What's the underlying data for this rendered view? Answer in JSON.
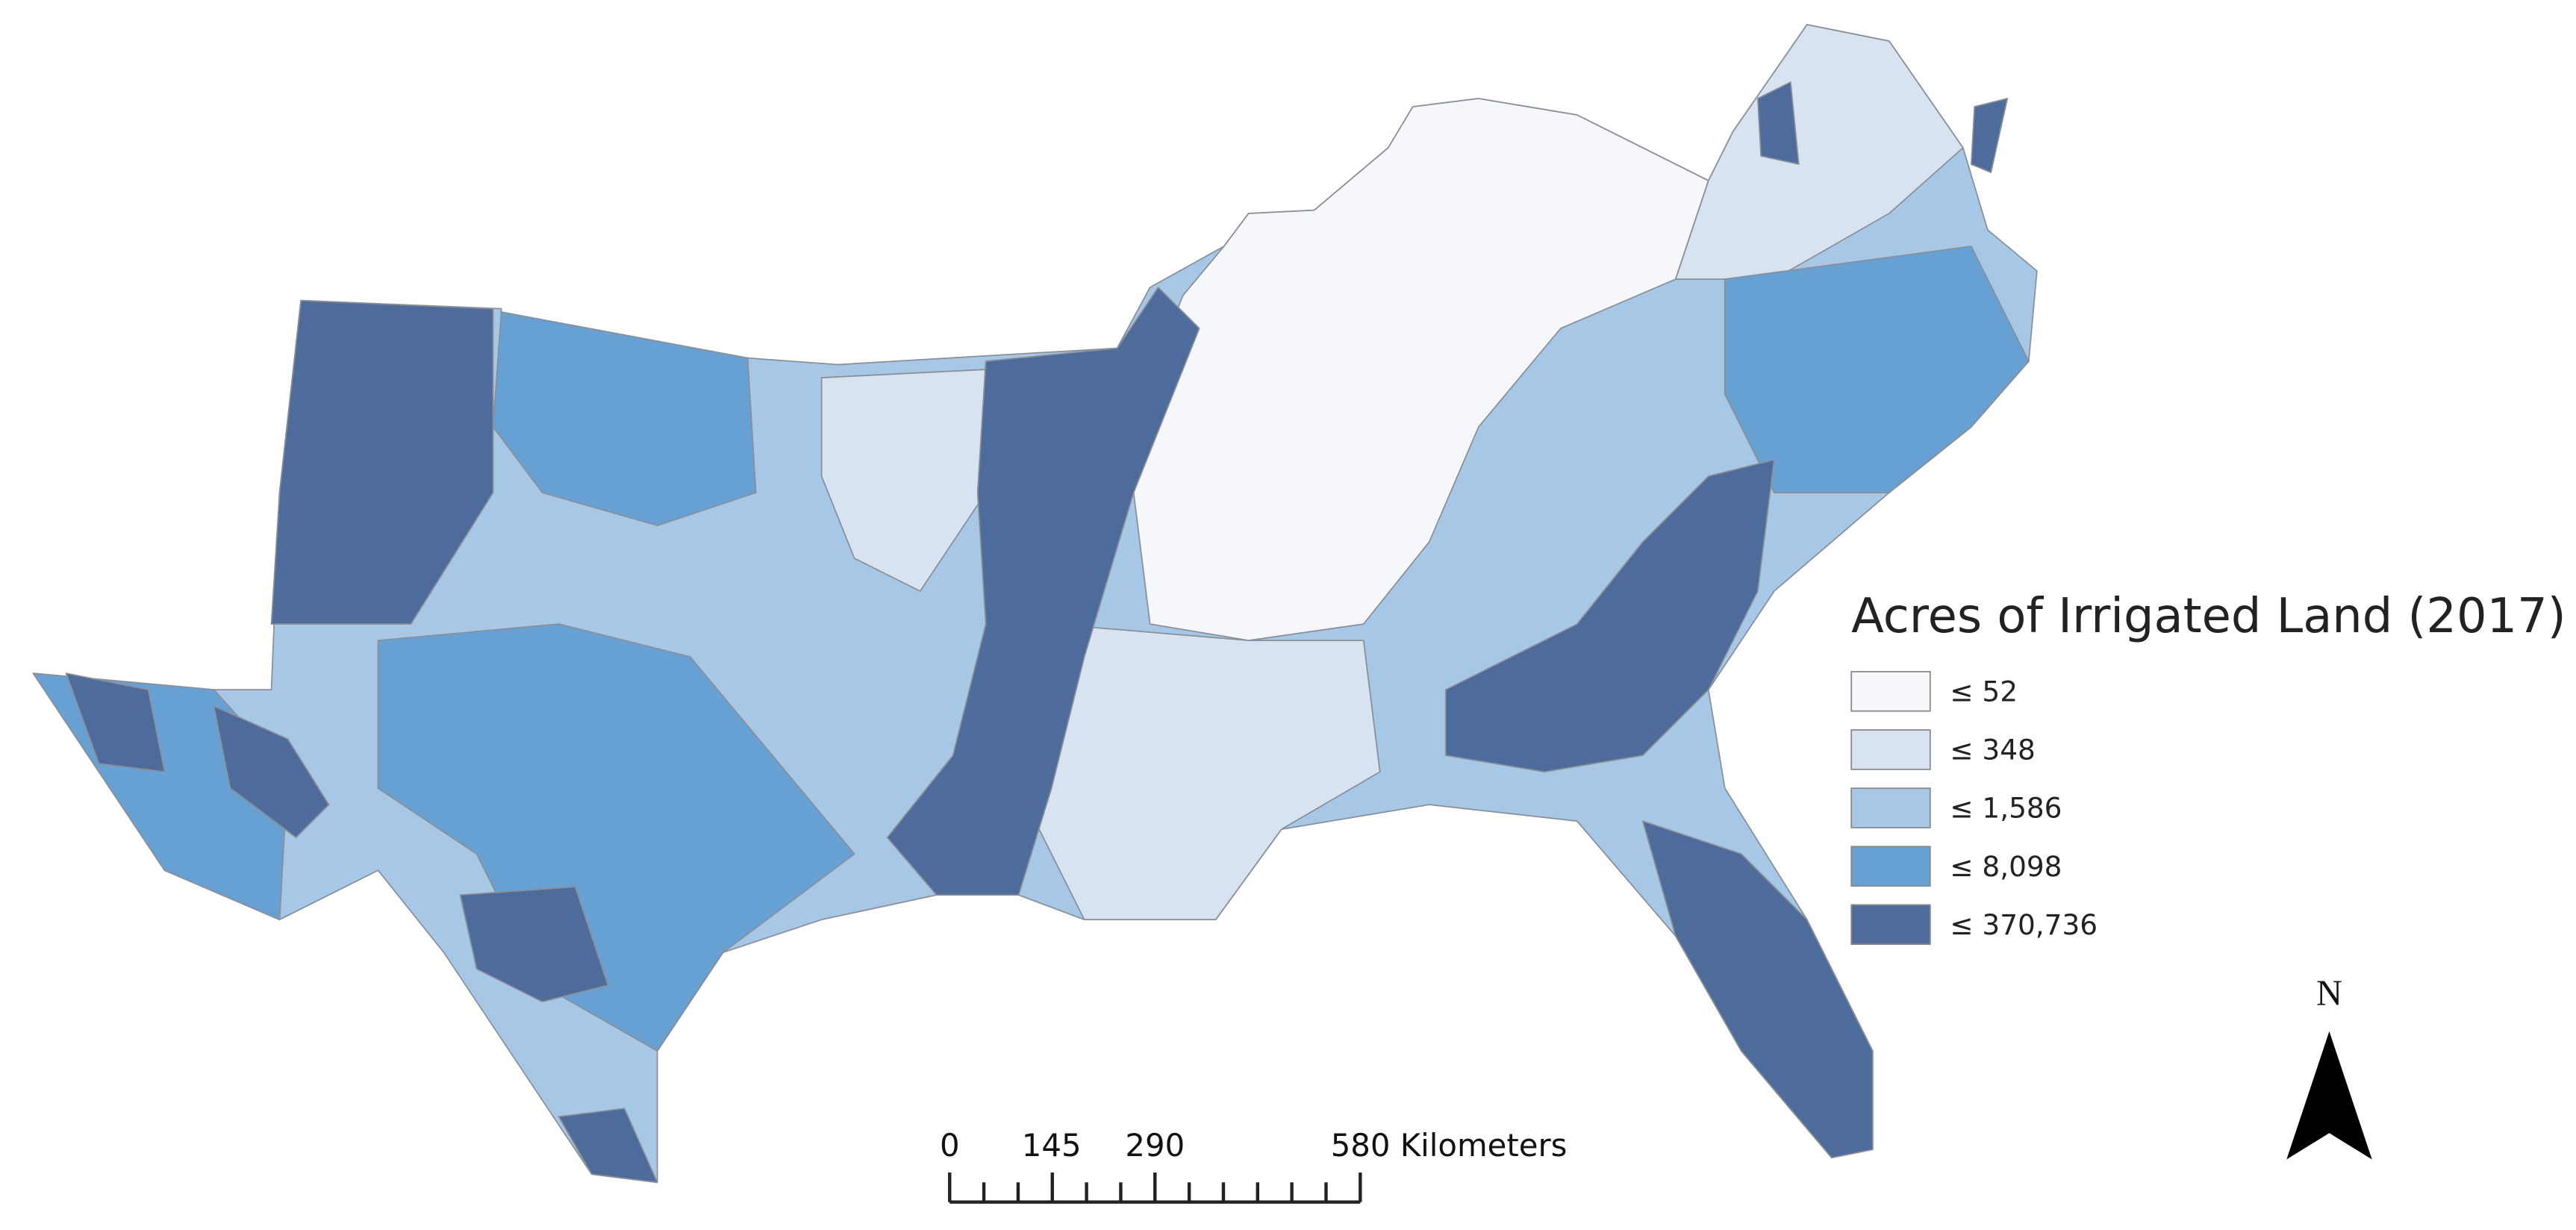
{
  "legend": {
    "title": "Acres of Irrigated Land (2017)",
    "items": [
      {
        "label": "≤ 52",
        "color": "#f5f7fb"
      },
      {
        "label": "≤ 348",
        "color": "#d7e3f1"
      },
      {
        "label": "≤ 1,586",
        "color": "#a6c8e6"
      },
      {
        "label": "≤ 8,098",
        "color": "#67a0d3"
      },
      {
        "label": "≤ 370,736",
        "color": "#4d6b9b"
      }
    ]
  },
  "scale_bar": {
    "labels": [
      "0",
      "145",
      "290",
      "580 Kilometers"
    ]
  },
  "north_arrow": {
    "label": "N"
  }
}
